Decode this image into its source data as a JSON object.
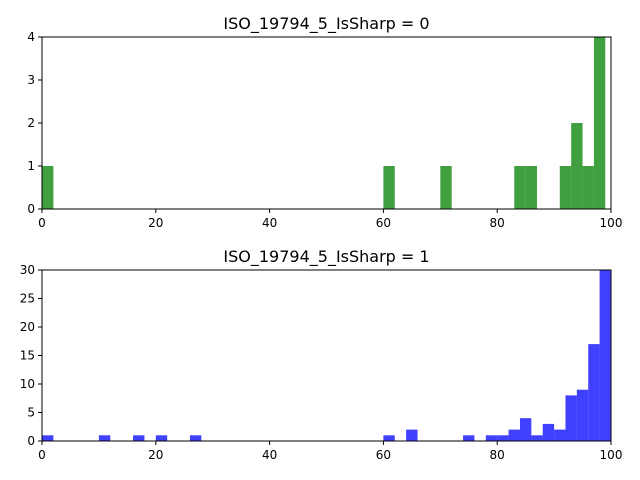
{
  "chart_data": [
    {
      "type": "bar",
      "subtype": "histogram",
      "title": "ISO_19794_5_IsSharp = 0",
      "color": "#008000",
      "bin_width": 2,
      "xlim": [
        0,
        100
      ],
      "ylim": [
        0,
        4
      ],
      "xticks": [
        0,
        20,
        40,
        60,
        80,
        100
      ],
      "yticks": [
        0,
        1,
        2,
        3,
        4
      ],
      "bins": [
        {
          "x": 0,
          "value": 1
        },
        {
          "x": 60,
          "value": 1
        },
        {
          "x": 70,
          "value": 1
        },
        {
          "x": 83,
          "value": 1
        },
        {
          "x": 85,
          "value": 1
        },
        {
          "x": 91,
          "value": 1
        },
        {
          "x": 93,
          "value": 2
        },
        {
          "x": 95,
          "value": 1
        },
        {
          "x": 97,
          "value": 4
        }
      ]
    },
    {
      "type": "bar",
      "subtype": "histogram",
      "title": "ISO_19794_5_IsSharp = 1",
      "color": "#0000ff",
      "bin_width": 2,
      "xlim": [
        0,
        100
      ],
      "ylim": [
        0,
        30
      ],
      "xticks": [
        0,
        20,
        40,
        60,
        80,
        100
      ],
      "yticks": [
        0,
        5,
        10,
        15,
        20,
        25,
        30
      ],
      "bins": [
        {
          "x": 0,
          "value": 1
        },
        {
          "x": 10,
          "value": 1
        },
        {
          "x": 16,
          "value": 1
        },
        {
          "x": 20,
          "value": 1
        },
        {
          "x": 26,
          "value": 1
        },
        {
          "x": 60,
          "value": 1
        },
        {
          "x": 64,
          "value": 2
        },
        {
          "x": 74,
          "value": 1
        },
        {
          "x": 78,
          "value": 1
        },
        {
          "x": 80,
          "value": 1
        },
        {
          "x": 82,
          "value": 2
        },
        {
          "x": 84,
          "value": 4
        },
        {
          "x": 86,
          "value": 1
        },
        {
          "x": 88,
          "value": 3
        },
        {
          "x": 90,
          "value": 2
        },
        {
          "x": 92,
          "value": 8
        },
        {
          "x": 94,
          "value": 9
        },
        {
          "x": 96,
          "value": 17
        },
        {
          "x": 98,
          "value": 30
        }
      ]
    }
  ]
}
